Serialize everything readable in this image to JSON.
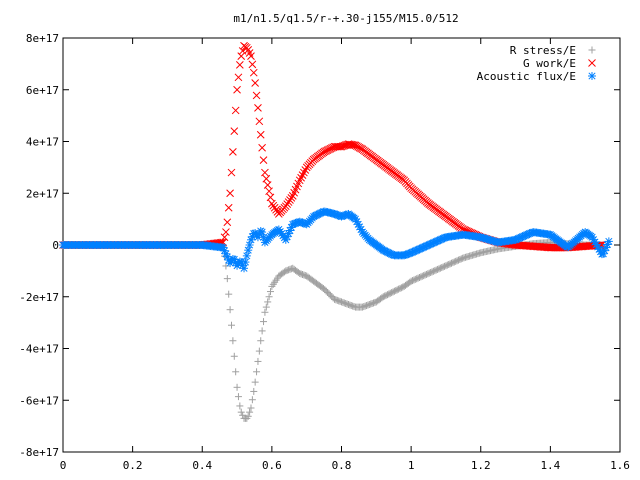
{
  "chart_data": {
    "type": "scatter",
    "title": "m1/n1.5/q1.5/r-+.30-j155/M15.0/512",
    "xlabel": "",
    "ylabel": "",
    "xlim": [
      0,
      1.6
    ],
    "ylim": [
      -8e+17,
      8e+17
    ],
    "x_ticks": [
      0,
      0.2,
      0.4,
      0.6,
      0.8,
      1.0,
      1.2,
      1.4,
      1.6
    ],
    "x_tick_labels": [
      "0",
      "0.2",
      "0.4",
      "0.6",
      "0.8",
      "1",
      "1.2",
      "1.4",
      "1.6"
    ],
    "y_ticks": [
      8e+17,
      6e+17,
      4e+17,
      2e+17,
      0,
      -2e+17,
      -4e+17,
      -6e+17,
      -8e+17
    ],
    "y_tick_labels": [
      "8e+17",
      "6e+17",
      "4e+17",
      "2e+17",
      "0",
      "-2e+17",
      "-4e+17",
      "-6e+17",
      "-8e+17"
    ],
    "grid": false,
    "legend_position": "top-right",
    "series": [
      {
        "name": "R stress/E",
        "marker": "plus",
        "color": "#a0a0a0",
        "x": [
          0.0,
          0.1,
          0.2,
          0.3,
          0.4,
          0.46,
          0.47,
          0.48,
          0.49,
          0.5,
          0.51,
          0.52,
          0.53,
          0.54,
          0.55,
          0.56,
          0.57,
          0.58,
          0.6,
          0.62,
          0.64,
          0.66,
          0.68,
          0.7,
          0.72,
          0.75,
          0.78,
          0.8,
          0.82,
          0.84,
          0.86,
          0.88,
          0.9,
          0.92,
          0.95,
          0.98,
          1.0,
          1.05,
          1.1,
          1.15,
          1.2,
          1.25,
          1.3,
          1.35,
          1.4,
          1.45,
          1.5,
          1.55
        ],
        "y": [
          0,
          0,
          0,
          0,
          0,
          -5000000000000000.0,
          -1e+17,
          -2.5e+17,
          -4e+17,
          -5.5e+17,
          -6.4e+17,
          -6.7e+17,
          -6.7e+17,
          -6.3e+17,
          -5.5e+17,
          -4.5e+17,
          -3.5e+17,
          -2.6e+17,
          -1.6e+17,
          -1.2e+17,
          -1e+17,
          -9e+16,
          -1.1e+17,
          -1.2e+17,
          -1.4e+17,
          -1.7e+17,
          -2.1e+17,
          -2.2e+17,
          -2.3e+17,
          -2.4e+17,
          -2.4e+17,
          -2.3e+17,
          -2.2e+17,
          -2e+17,
          -1.8e+17,
          -1.6e+17,
          -1.4e+17,
          -1.1e+17,
          -8e+16,
          -5e+16,
          -3e+16,
          -1.5e+16,
          -5000000000000000.0,
          5000000000000000.0,
          1e+16,
          5000000000000000.0,
          0.0,
          0.0
        ]
      },
      {
        "name": "G work/E",
        "marker": "cross",
        "color": "#ff0000",
        "x": [
          0.0,
          0.1,
          0.2,
          0.3,
          0.4,
          0.46,
          0.47,
          0.48,
          0.49,
          0.5,
          0.51,
          0.52,
          0.53,
          0.54,
          0.55,
          0.56,
          0.57,
          0.58,
          0.6,
          0.62,
          0.64,
          0.66,
          0.68,
          0.7,
          0.72,
          0.75,
          0.78,
          0.8,
          0.82,
          0.84,
          0.86,
          0.88,
          0.9,
          0.92,
          0.95,
          0.98,
          1.0,
          1.05,
          1.1,
          1.15,
          1.2,
          1.25,
          1.3,
          1.35,
          1.4,
          1.45,
          1.5,
          1.55
        ],
        "y": [
          0,
          0,
          0,
          0,
          0,
          1e+16,
          6e+16,
          2e+17,
          4e+17,
          6e+17,
          7.2e+17,
          7.7e+17,
          7.6e+17,
          7.3e+17,
          6.5e+17,
          5.3e+17,
          4e+17,
          2.8e+17,
          1.6e+17,
          1.2e+17,
          1.5e+17,
          1.9e+17,
          2.5e+17,
          3e+17,
          3.3e+17,
          3.6e+17,
          3.8e+17,
          3.8e+17,
          3.9e+17,
          3.85e+17,
          3.7e+17,
          3.5e+17,
          3.3e+17,
          3.1e+17,
          2.8e+17,
          2.5e+17,
          2.2e+17,
          1.6e+17,
          1.1e+17,
          6e+16,
          3e+16,
          1e+16,
          0.0,
          -5000000000000000.0,
          -1e+16,
          -1e+16,
          -5000000000000000.0,
          0.0
        ]
      },
      {
        "name": "Acoustic flux/E",
        "marker": "star",
        "color": "#0080ff",
        "x": [
          0.0,
          0.1,
          0.2,
          0.3,
          0.4,
          0.46,
          0.47,
          0.48,
          0.49,
          0.5,
          0.51,
          0.52,
          0.53,
          0.54,
          0.55,
          0.56,
          0.57,
          0.58,
          0.6,
          0.62,
          0.64,
          0.66,
          0.68,
          0.7,
          0.72,
          0.75,
          0.78,
          0.8,
          0.82,
          0.84,
          0.86,
          0.88,
          0.9,
          0.92,
          0.95,
          0.98,
          1.0,
          1.05,
          1.1,
          1.15,
          1.2,
          1.25,
          1.3,
          1.35,
          1.4,
          1.45,
          1.5,
          1.52,
          1.55,
          1.57
        ],
        "y": [
          0,
          0,
          0,
          0,
          0,
          -1e+16,
          -4e+16,
          -7e+16,
          -5e+16,
          -8e+16,
          -6e+16,
          -9e+16,
          -3e+16,
          2e+16,
          5e+16,
          3e+16,
          6e+16,
          1e+16,
          4e+16,
          6e+16,
          2e+16,
          8e+16,
          9e+16,
          8e+16,
          1.1e+17,
          1.3e+17,
          1.2e+17,
          1.1e+17,
          1.2e+17,
          1e+17,
          5e+16,
          2e+16,
          0.0,
          -2e+16,
          -4e+16,
          -4e+16,
          -3e+16,
          0.0,
          3e+16,
          4e+16,
          3e+16,
          1e+16,
          2e+16,
          5e+16,
          4e+16,
          -1e+16,
          5e+16,
          3e+16,
          -4e+16,
          2e+16
        ]
      }
    ]
  }
}
